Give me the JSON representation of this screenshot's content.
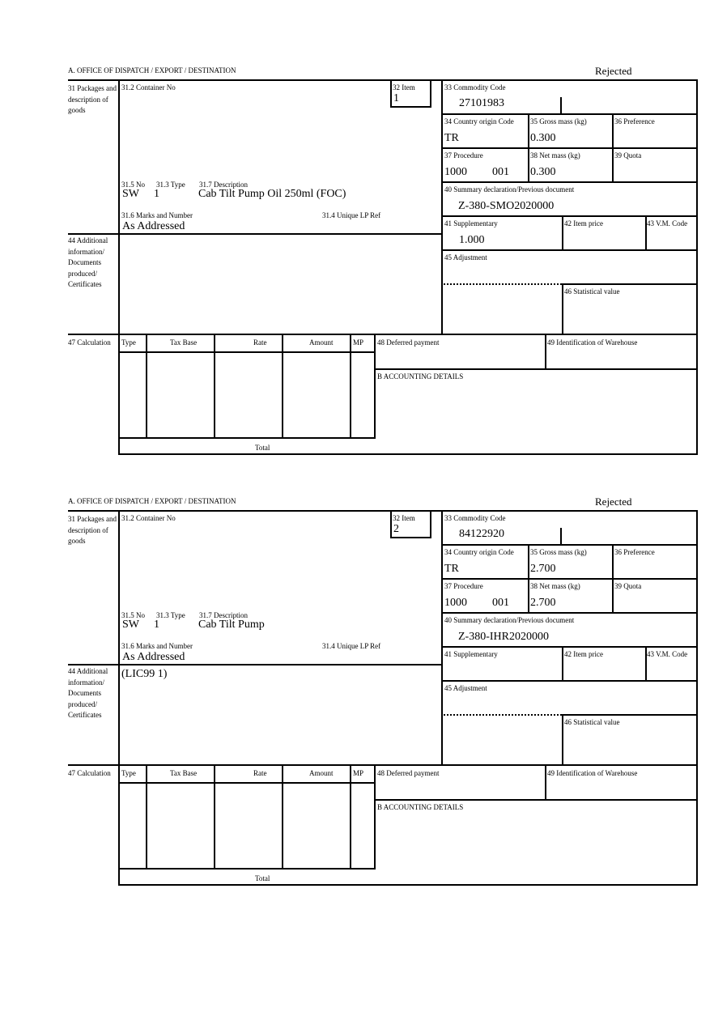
{
  "labels": {
    "header": "A.  OFFICE OF DISPATCH / EXPORT / DESTINATION",
    "packages": "31 Packages and description of goods",
    "container_no": "31.2 Container No",
    "item": "32 Item",
    "no": "31.5 No",
    "type": "31.3 Type",
    "description": "31.7 Description",
    "marks": "31.6 Marks and Number",
    "unique_lp_ref": "31.4 Unique LP Ref",
    "commodity_code": "33 Commodity Code",
    "country_origin": "34 Country origin Code",
    "gross_mass": "35 Gross mass (kg)",
    "preference": "36 Preference",
    "procedure": "37 Procedure",
    "net_mass": "38 Net mass (kg)",
    "quota": "39 Quota",
    "summary_decl": "40 Summary declaration/Previous document",
    "supplementary": "41 Supplementary",
    "item_price": "42 Item price",
    "vm_code": "43 V.M. Code",
    "additional_info": "44 Additional information/ Documents produced/ Certificates",
    "adjustment": "45 Adjustment",
    "statistical_value": "46 Statistical value",
    "calculation": "47 Calculation",
    "calc_columns": [
      "Type",
      "Tax Base",
      "Rate",
      "Amount",
      "MP"
    ],
    "total": "Total",
    "deferred_payment": "48 Deferred payment",
    "warehouse": "49 Identification of Warehouse",
    "accounting": "B ACCOUNTING DETAILS"
  },
  "forms": [
    {
      "status": "Rejected",
      "item": "1",
      "no": "SW",
      "type": "1",
      "description": "Cab Tilt Pump Oil 250ml (FOC)",
      "marks": "As Addressed",
      "additional_info": "",
      "commodity_code": "27101983",
      "country_origin": "TR",
      "gross_mass": "0.300",
      "procedure": "1000",
      "procedure_extra": "001",
      "net_mass": "0.300",
      "summary_decl": "Z-380-SMO2020000",
      "supplementary": "1.000"
    },
    {
      "status": "Rejected",
      "item": "2",
      "no": "SW",
      "type": "1",
      "description": "Cab Tilt Pump",
      "marks": "As Addressed",
      "additional_info": "(LIC99 1)",
      "commodity_code": "84122920",
      "country_origin": "TR",
      "gross_mass": "2.700",
      "procedure": "1000",
      "procedure_extra": "001",
      "net_mass": "2.700",
      "summary_decl": "Z-380-IHR2020000",
      "supplementary": ""
    }
  ]
}
